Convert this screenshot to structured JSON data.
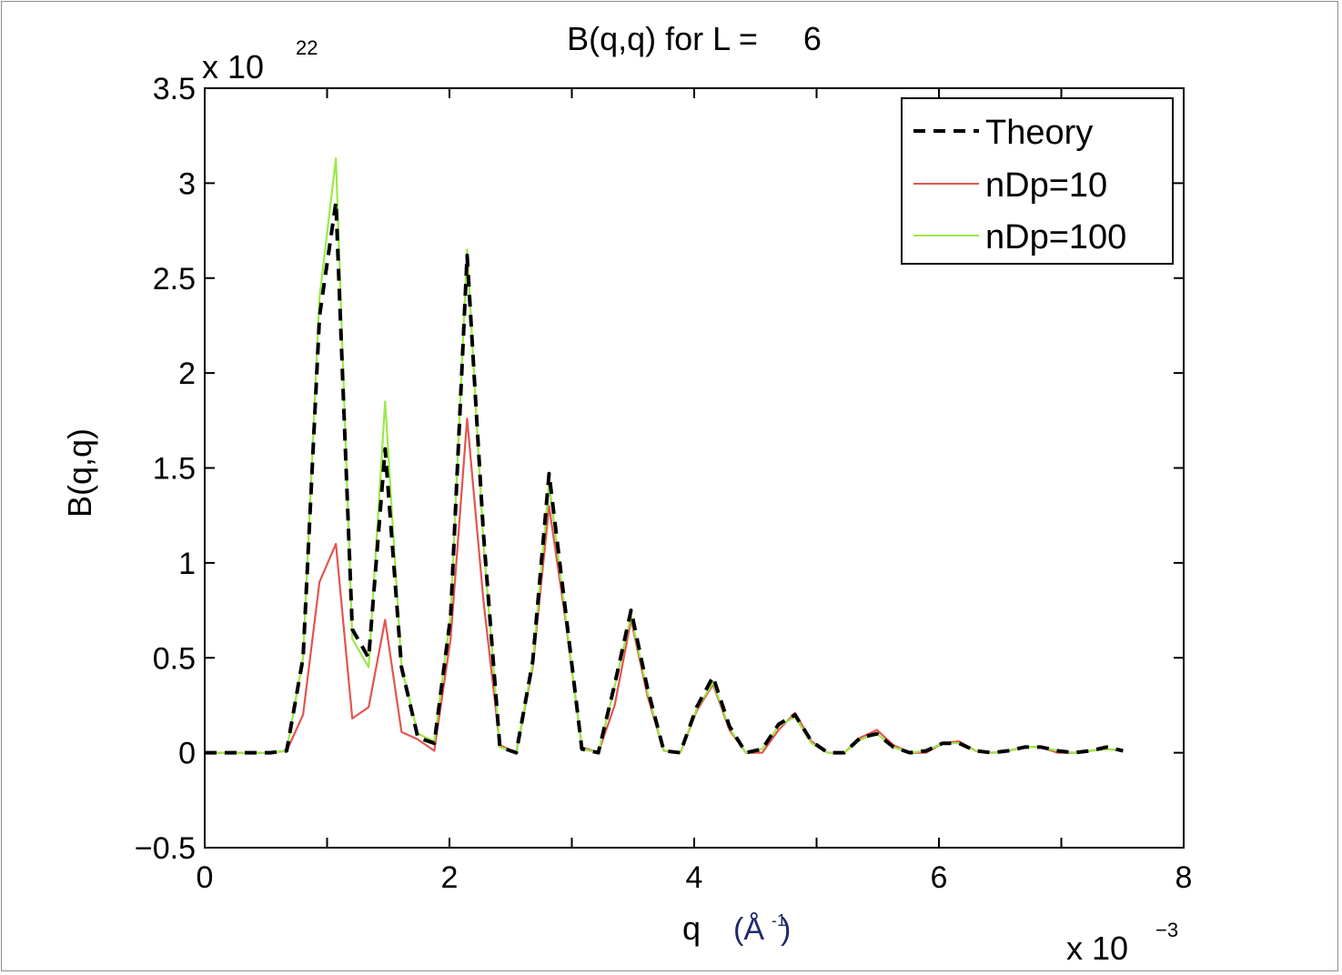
{
  "chart_data": {
    "type": "line",
    "title": "B(q,q) for L =     6",
    "xlabel": "q",
    "xunit": "(Å",
    "xunit_sup": "-1",
    "xunit_close": ")",
    "ylabel": "B(q,q)",
    "x_multiplier": "x 10",
    "x_multiplier_exp": "−3",
    "y_multiplier": "x 10",
    "y_multiplier_exp": "22",
    "xlim": [
      0,
      8
    ],
    "ylim": [
      -0.5,
      3.5
    ],
    "xticks": [
      "0",
      "2",
      "4",
      "6",
      "8"
    ],
    "yticks": [
      "−0.5",
      "0",
      "0.5",
      "1",
      "1.5",
      "2",
      "2.5",
      "3",
      "3.5"
    ],
    "legend_position": "top-right",
    "x": [
      0,
      0.134,
      0.268,
      0.402,
      0.536,
      0.67,
      0.804,
      0.938,
      1.072,
      1.206,
      1.34,
      1.474,
      1.608,
      1.742,
      1.876,
      2.01,
      2.144,
      2.278,
      2.412,
      2.546,
      2.68,
      2.814,
      2.948,
      3.082,
      3.216,
      3.35,
      3.484,
      3.618,
      3.752,
      3.886,
      4.02,
      4.154,
      4.288,
      4.422,
      4.556,
      4.69,
      4.824,
      4.958,
      5.092,
      5.226,
      5.36,
      5.494,
      5.628,
      5.762,
      5.896,
      6.03,
      6.164,
      6.298,
      6.432,
      6.566,
      6.7,
      6.834,
      6.968,
      7.102,
      7.236,
      7.37,
      7.504
    ],
    "series": [
      {
        "name": "Theory",
        "color": "#000000",
        "dash": "dashed",
        "values": [
          0,
          0,
          0,
          0,
          0,
          0.01,
          0.5,
          2.3,
          2.9,
          0.65,
          0.5,
          1.6,
          0.45,
          0.08,
          0.05,
          0.72,
          2.62,
          1.15,
          0.03,
          0,
          0.48,
          1.47,
          0.75,
          0.02,
          0,
          0.36,
          0.75,
          0.34,
          0.01,
          0,
          0.24,
          0.4,
          0.14,
          0,
          0.02,
          0.15,
          0.2,
          0.06,
          0,
          0,
          0.08,
          0.1,
          0.03,
          0,
          0.01,
          0.05,
          0.05,
          0.01,
          0,
          0.01,
          0.03,
          0.03,
          0.01,
          0,
          0.01,
          0.03,
          0.01
        ]
      },
      {
        "name": "nDp=10",
        "color": "#e0564f",
        "dash": "solid",
        "values": [
          0,
          0,
          0,
          0,
          0,
          0.01,
          0.2,
          0.9,
          1.1,
          0.18,
          0.24,
          0.7,
          0.11,
          0.07,
          0.01,
          0.6,
          1.76,
          0.8,
          0.04,
          0,
          0.45,
          1.3,
          0.7,
          0.03,
          0,
          0.25,
          0.7,
          0.3,
          0.01,
          0,
          0.22,
          0.36,
          0.12,
          0,
          0,
          0.12,
          0.21,
          0.06,
          0,
          0,
          0.08,
          0.12,
          0.04,
          0,
          0,
          0.05,
          0.06,
          0.01,
          0,
          0.01,
          0.03,
          0.03,
          0,
          0,
          0.01,
          0.02,
          0.01
        ]
      },
      {
        "name": "nDp=100",
        "color": "#9ce84a",
        "dash": "solid",
        "values": [
          0,
          0,
          0,
          0,
          0,
          0.01,
          0.5,
          2.4,
          3.13,
          0.6,
          0.45,
          1.85,
          0.45,
          0.1,
          0.06,
          0.72,
          2.65,
          1.1,
          0.03,
          0,
          0.47,
          1.42,
          0.72,
          0.02,
          0,
          0.35,
          0.72,
          0.32,
          0.01,
          0,
          0.23,
          0.37,
          0.13,
          0,
          0.02,
          0.14,
          0.19,
          0.05,
          0,
          0,
          0.07,
          0.1,
          0.03,
          0,
          0.01,
          0.05,
          0.05,
          0.01,
          0,
          0.01,
          0.03,
          0.03,
          0.01,
          0,
          0.01,
          0.02,
          0.01
        ]
      }
    ]
  }
}
